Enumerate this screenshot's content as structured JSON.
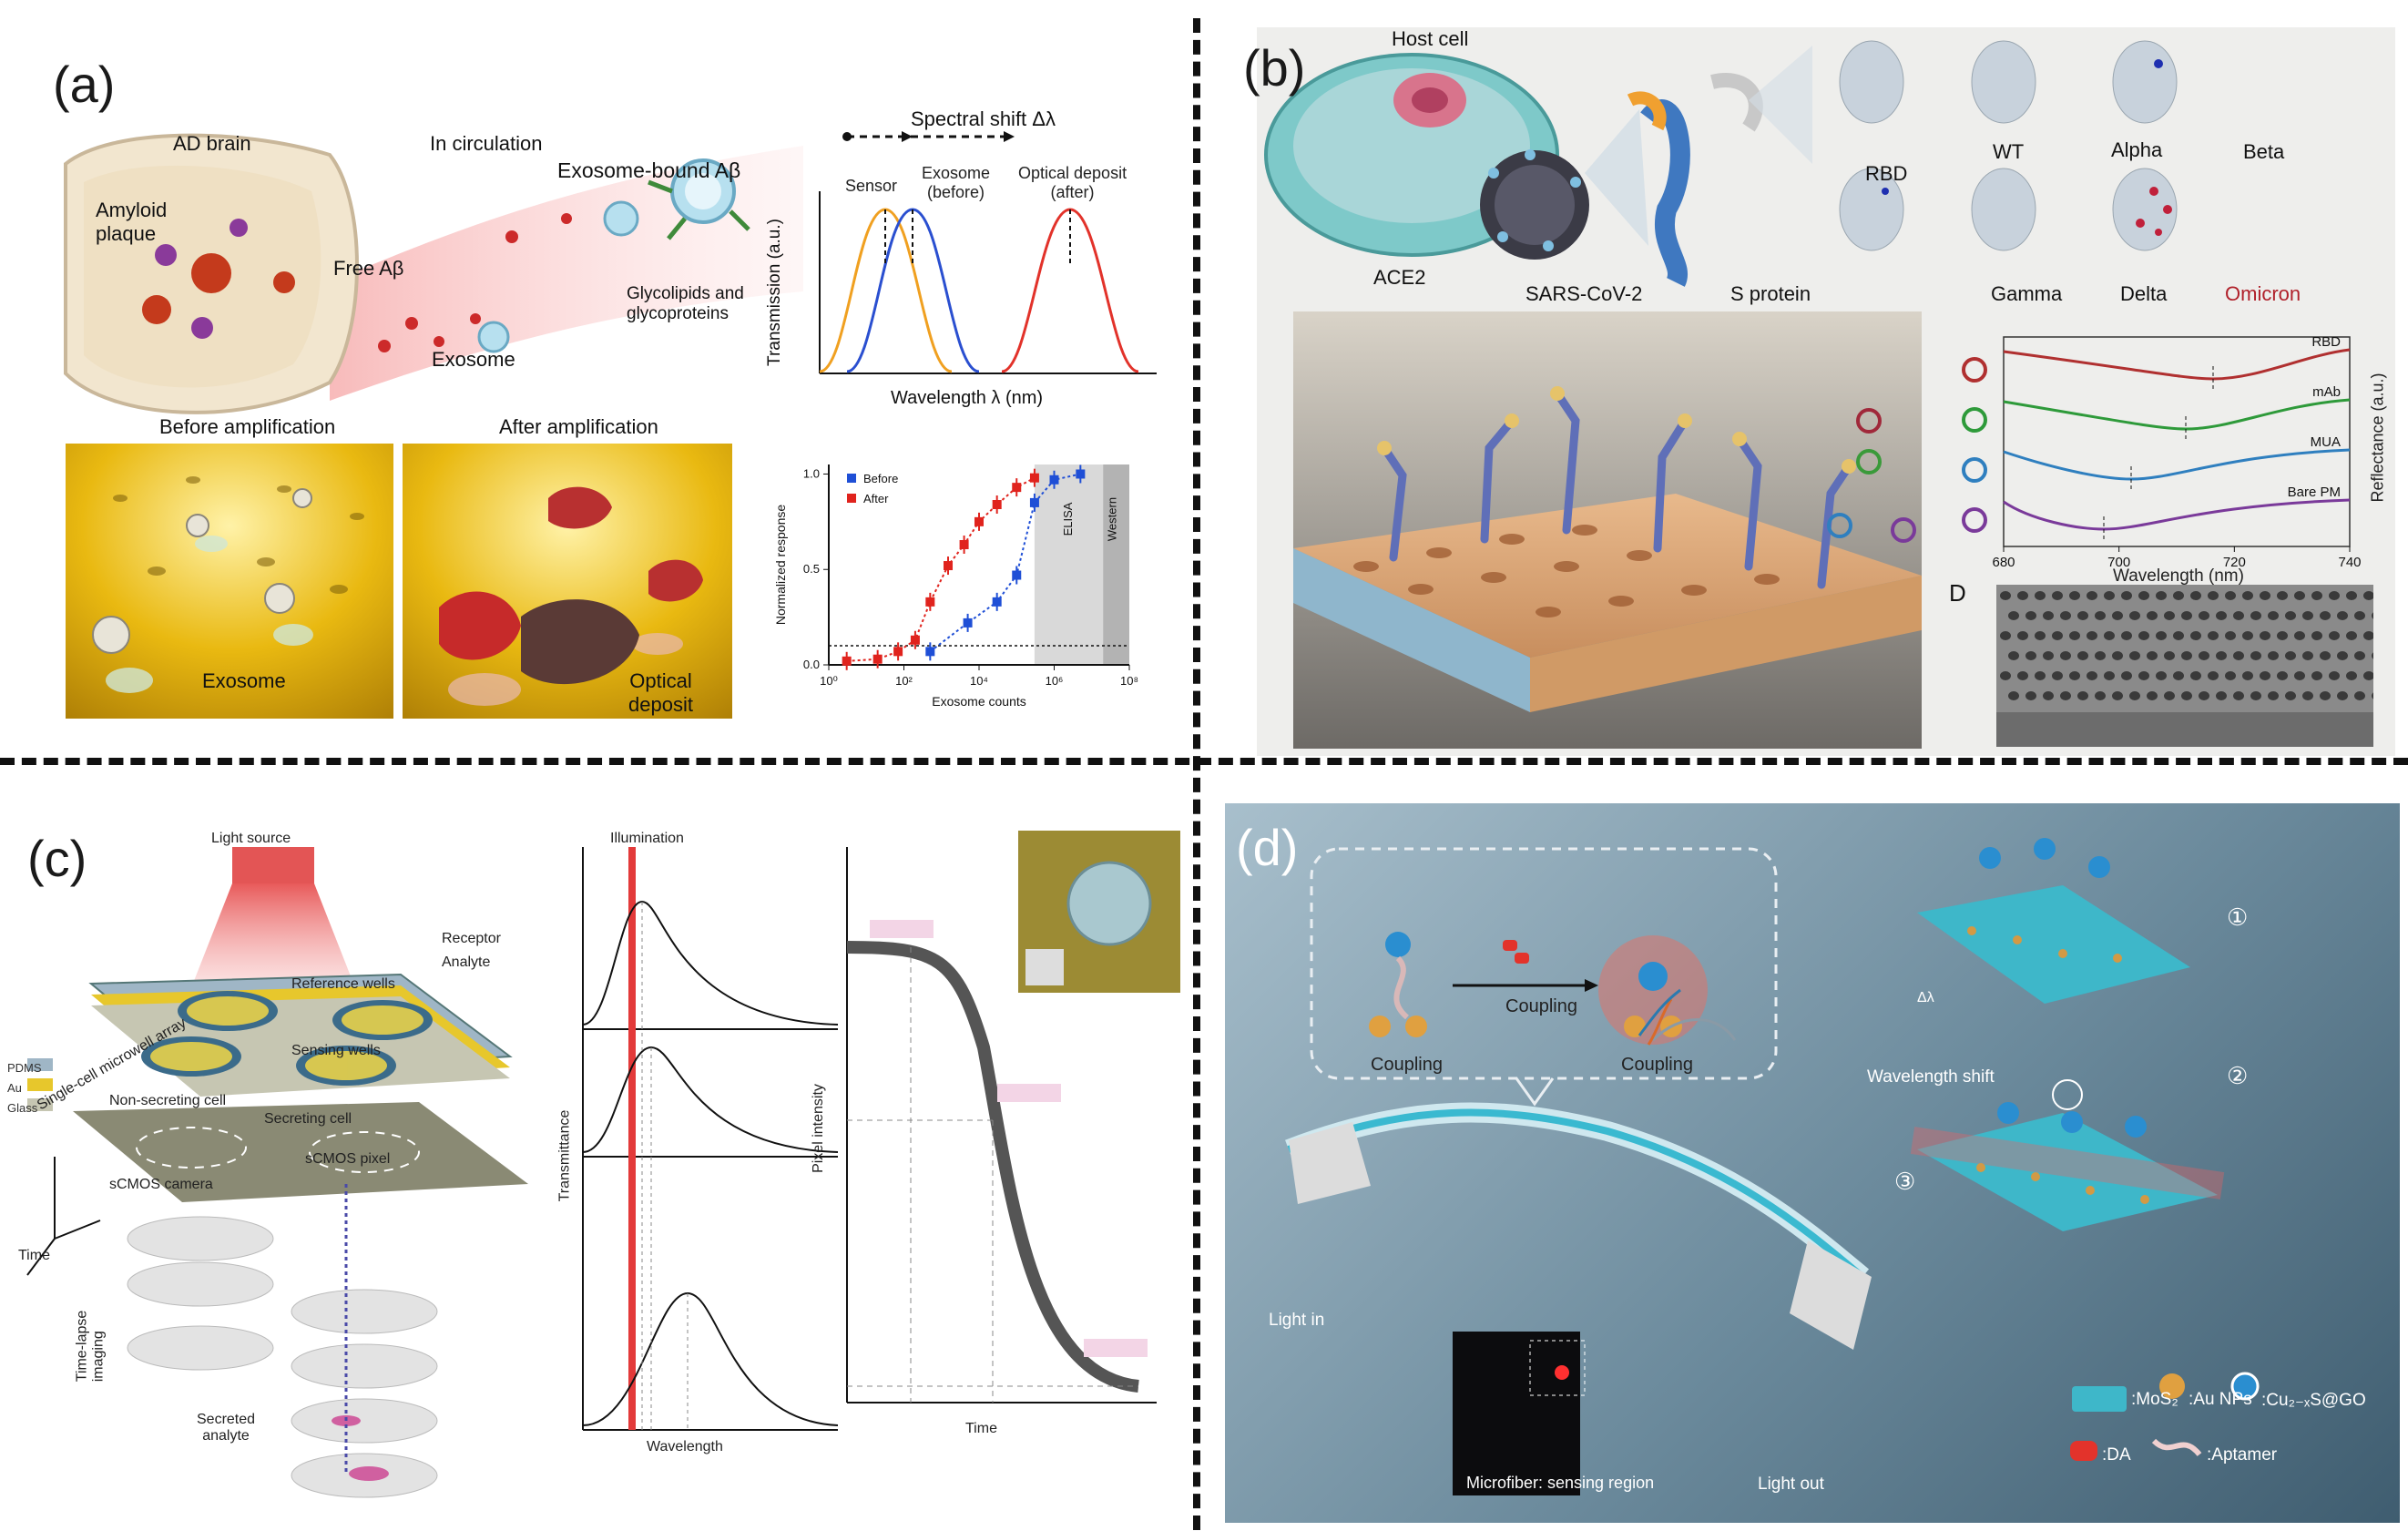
{
  "panels": {
    "a": {
      "letter": "(a)",
      "labels": {
        "ad_brain": "AD brain",
        "in_circulation": "In circulation",
        "exosome_bound": "Exosome-bound Aβ",
        "amyloid_plaque": "Amyloid\nplaque",
        "free_ab": "Free Aβ",
        "glycolipids": "Glycolipids and\nglycoproteins",
        "exosome": "Exosome",
        "before_amp": "Before amplification",
        "after_amp": "After amplification",
        "exosome2": "Exosome",
        "optical_deposit": "Optical\ndeposit"
      },
      "spectrum": {
        "title": "Spectral shift Δλ",
        "sensor": "Sensor",
        "exosome_before": "Exosome\n(before)",
        "optical_deposit_after": "Optical deposit\n(after)",
        "ylabel": "Transmission (a.u.)",
        "xlabel": "Wavelength λ (nm)"
      }
    },
    "b": {
      "letter": "(b)",
      "labels": {
        "host_cell": "Host cell",
        "ace2": "ACE2",
        "sars": "SARS-CoV-2",
        "s_protein": "S protein",
        "rbd": "RBD",
        "wt": "WT",
        "alpha": "Alpha",
        "beta": "Beta",
        "gamma": "Gamma",
        "delta": "Delta",
        "omicron": "Omicron",
        "d_label": "D"
      },
      "reflectance": {
        "ylabel": "Reflectance (a.u.)",
        "xlabel": "Wavelength (nm)",
        "x_ticks": [
          "680",
          "700",
          "720",
          "740"
        ],
        "traces": [
          "RBD",
          "mAb",
          "MUA",
          "Bare PM"
        ],
        "colors": [
          "#b03030",
          "#2e9a3a",
          "#2f7fbf",
          "#7a3a9a"
        ]
      }
    },
    "c": {
      "letter": "(c)",
      "labels": {
        "light_source": "Light source",
        "receptor": "Receptor",
        "analyte": "Analyte",
        "single_cell_array": "Single-cell microwell array",
        "reference_wells": "Reference wells",
        "sensing_wells": "Sensing wells",
        "non_secreting": "Non-secreting cell",
        "secreting": "Secreting cell",
        "pdms": "PDMS",
        "au": "Au",
        "glass": "Glass",
        "scmos_camera": "sCMOS camera",
        "scmos_pixel": "sCMOS pixel",
        "time": "Time",
        "time_lapse": "Time-lapse\nimaging",
        "secreted_analyte": "Secreted\nanalyte",
        "illumination": "Illumination",
        "transmittance": "Transmittance",
        "wavelength": "Wavelength",
        "pixel_intensity": "Pixel intensity",
        "time_axis": "Time"
      }
    },
    "d": {
      "letter": "(d)",
      "labels": {
        "coupling1": "Coupling",
        "coupling_arrow": "Coupling",
        "coupling2": "Coupling",
        "delta_lambda": "Δλ",
        "wavelength_shift": "Wavelength shift",
        "light_in": "Light in",
        "light_out": "Light out",
        "microfiber": "Microfiber: sensing region",
        "step1": "①",
        "step2": "②",
        "step3": "③",
        "legend_mos2": ":MoS₂",
        "legend_au": ":Au NPs",
        "legend_cus": ":Cu₂₋ₓS@GO",
        "legend_da": ":DA",
        "legend_aptamer": ":Aptamer"
      }
    }
  },
  "chart_data": [
    {
      "type": "scatter",
      "xlabel": "Exosome counts",
      "ylabel": "Normalized response",
      "xscale": "log",
      "xlim": [
        1,
        100000000
      ],
      "ylim": [
        0,
        1.05
      ],
      "x_tick_labels": [
        "10⁰",
        "10²",
        "10⁴",
        "10⁶",
        "10⁸"
      ],
      "y_tick_labels": [
        "0.0",
        "0.5",
        "1.0"
      ],
      "legend": "top-left",
      "annotations": [
        "ELISA",
        "Western"
      ],
      "series": [
        {
          "name": "Before",
          "color": "#1f4fd6",
          "x": [
            500,
            5000,
            30000,
            100000,
            300000,
            1000000,
            5000000
          ],
          "y": [
            0.07,
            0.22,
            0.33,
            0.47,
            0.85,
            0.97,
            1.0
          ]
        },
        {
          "name": "After",
          "color": "#e0231d",
          "x": [
            3,
            20,
            70,
            200,
            500,
            1500,
            4000,
            10000,
            30000,
            100000,
            300000
          ],
          "y": [
            0.02,
            0.03,
            0.07,
            0.13,
            0.33,
            0.52,
            0.63,
            0.75,
            0.84,
            0.93,
            0.98
          ]
        }
      ]
    }
  ]
}
